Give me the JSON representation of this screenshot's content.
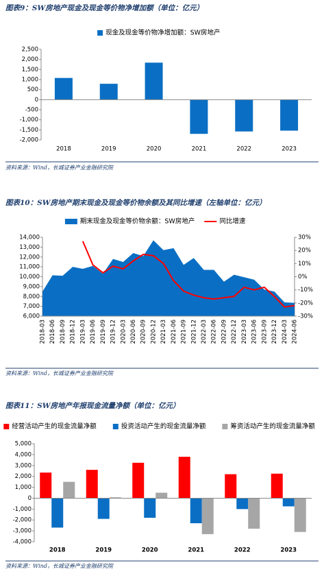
{
  "chart_data": [
    {
      "type": "bar",
      "title": "图表9：SW房地产现金及现金等价物净增加额（单位：亿元）",
      "source": "资料来源：Wind，长城证券产业金融研究院",
      "categories": [
        "2018",
        "2019",
        "2020",
        "2021",
        "2022",
        "2023"
      ],
      "series": [
        {
          "name": "现金及现金等价物净增加额：SW房地产",
          "color": "#0a6fc4",
          "values": [
            1080,
            790,
            1840,
            -1700,
            -1580,
            -1540
          ]
        }
      ],
      "ylim": [
        -2000,
        2500
      ],
      "yticks": [
        {
          "value": 2500,
          "label": "2,500"
        },
        {
          "value": 2000,
          "label": "2,000"
        },
        {
          "value": 1500,
          "label": "1,500"
        },
        {
          "value": 1000,
          "label": "1,000"
        },
        500,
        0,
        -500,
        {
          "value": -1000,
          "label": "-1,000"
        },
        {
          "value": -1500,
          "label": "-1,500"
        },
        {
          "value": -2000,
          "label": "-2,000"
        }
      ]
    },
    {
      "type": "area_line",
      "title": "图表10：SW房地产期末现金及现金等价物余额及其同比增速（左轴单位：亿元）",
      "source": "资料来源：Wind，长城证券产业金融研究院",
      "x": [
        "2018-03",
        "2018-06",
        "2018-09",
        "2018-12",
        "2019-03",
        "2019-06",
        "2019-09",
        "2019-12",
        "2020-03",
        "2020-06",
        "2020-09",
        "2020-12",
        "2021-03",
        "2021-06",
        "2021-09",
        "2021-12",
        "2022-03",
        "2022-06",
        "2022-09",
        "2022-12",
        "2023-03",
        "2023-06",
        "2023-09",
        "2023-12",
        "2024-03",
        "2024-06"
      ],
      "series": [
        {
          "name": "期末现金及现金等价物余额：SW房地产",
          "color": "#0a6fc4",
          "kind": "area",
          "values": [
            8500,
            10150,
            10100,
            11000,
            10800,
            11100,
            10300,
            11800,
            11500,
            12400,
            12100,
            13700,
            12700,
            12900,
            11200,
            11900,
            10700,
            10700,
            9500,
            10200,
            9950,
            9700,
            8700,
            8500,
            7400,
            7350
          ]
        },
        {
          "name": "同比增速",
          "color": "#ff0000",
          "kind": "line",
          "axis": "y2",
          "values": [
            null,
            null,
            null,
            null,
            27,
            9,
            3,
            8,
            6,
            12,
            17,
            16,
            10,
            -3,
            -11,
            -14,
            -16,
            -17,
            -16,
            -15,
            -8,
            -10,
            -8,
            -15,
            -23,
            -22
          ]
        }
      ],
      "ylim": [
        6000,
        14000
      ],
      "yticks": [
        {
          "value": 14000,
          "label": "14,000"
        },
        {
          "value": 13000,
          "label": "13,000"
        },
        {
          "value": 12000,
          "label": "12,000"
        },
        {
          "value": 11000,
          "label": "11,000"
        },
        {
          "value": 10000,
          "label": "10,000"
        },
        {
          "value": 9000,
          "label": "9,000"
        },
        {
          "value": 8000,
          "label": "8,000"
        },
        {
          "value": 7000,
          "label": "7,000"
        },
        {
          "value": 6000,
          "label": "6,000"
        }
      ],
      "y2lim": [
        -30,
        30
      ],
      "y2ticks": [
        {
          "value": 30,
          "label": "30%"
        },
        {
          "value": 20,
          "label": "20%"
        },
        {
          "value": 10,
          "label": "10%"
        },
        {
          "value": 0,
          "label": "0%"
        },
        {
          "value": -10,
          "label": "-10%"
        },
        {
          "value": -20,
          "label": "-20%"
        },
        {
          "value": -30,
          "label": "-30%"
        }
      ]
    },
    {
      "type": "grouped_bar",
      "title": "图表11：SW房地产年报现金流量净额（单位：亿元）",
      "source": "资料来源：Wind，长城证券产业金融研究院",
      "categories": [
        "2018",
        "2019",
        "2020",
        "2021",
        "2022",
        "2023"
      ],
      "series": [
        {
          "name": "经营活动产生的现金流量净额",
          "color": "#ff0000",
          "values": [
            2350,
            2600,
            3250,
            3800,
            2200,
            2250
          ]
        },
        {
          "name": "投资活动产生的现金流量净额",
          "color": "#0a6fc4",
          "values": [
            -2700,
            -1900,
            -1800,
            -2300,
            -1000,
            -750
          ]
        },
        {
          "name": "筹资活动产生的现金流量净额",
          "color": "#a6a6a6",
          "values": [
            1500,
            80,
            500,
            -3300,
            -2800,
            -3100
          ]
        }
      ],
      "ylim": [
        -4000,
        5000
      ],
      "yticks": [
        {
          "value": 5000,
          "label": "5,000"
        },
        {
          "value": 4000,
          "label": "4,000"
        },
        {
          "value": 3000,
          "label": "3,000"
        },
        {
          "value": 2000,
          "label": "2,000"
        },
        {
          "value": 1000,
          "label": "1,000"
        },
        0,
        {
          "value": -1000,
          "label": "-1,000"
        },
        {
          "value": -2000,
          "label": "-2,000"
        },
        {
          "value": -3000,
          "label": "-3,000"
        },
        {
          "value": -4000,
          "label": "-4,000"
        }
      ]
    }
  ]
}
